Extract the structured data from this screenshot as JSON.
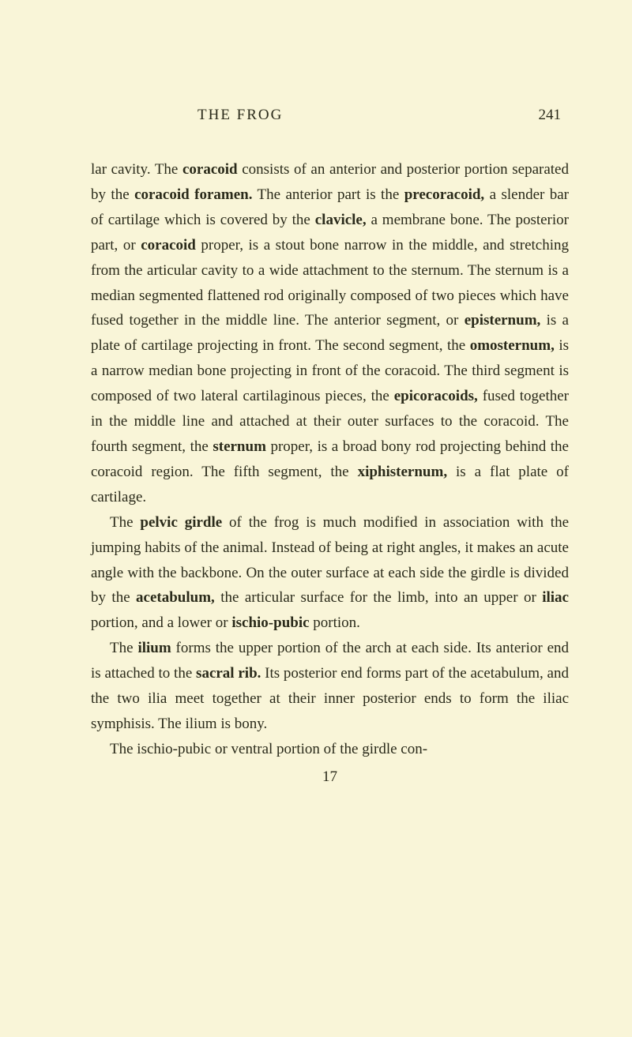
{
  "header": {
    "title": "THE FROG",
    "pageNumber": "241"
  },
  "paragraphs": {
    "p1": {
      "text": "lar cavity. The ",
      "bold1": "coracoid",
      "text2": " consists of an anterior and posterior portion separated by the ",
      "bold2": "coracoid foramen.",
      "text3": " The anterior part is the ",
      "bold3": "precoracoid,",
      "text4": " a slender bar of cartilage which is covered by the ",
      "bold4": "clavicle,",
      "text5": " a membrane bone. The posterior part, or ",
      "bold5": "coracoid",
      "text6": " proper, is a stout bone narrow in the middle, and stretching from the articular cavity to a wide attachment to the sternum. The sternum is a median segmented flattened rod originally composed of two pieces which have fused together in the middle line. The anterior segment, or ",
      "bold6": "episternum,",
      "text7": " is a plate of cartilage projecting in front. The second segment, the ",
      "bold7": "omosternum,",
      "text8": " is a narrow median bone projecting in front of the coracoid. The third segment is composed of two lateral cartilaginous pieces, the ",
      "bold8": "epicoracoids,",
      "text9": " fused together in the middle line and attached at their outer surfaces to the coracoid. The fourth segment, the ",
      "bold9": "sternum",
      "text10": " proper, is a broad bony rod projecting behind the coracoid region. The fifth segment, the ",
      "bold10": "xiphisternum,",
      "text11": " is a flat plate of cartilage."
    },
    "p2": {
      "text1": "The ",
      "bold1": "pelvic girdle",
      "text2": " of the frog is much modified in association with the jumping habits of the animal. Instead of being at right angles, it makes an acute angle with the backbone. On the outer surface at each side the girdle is divided by the ",
      "bold2": "acetabulum,",
      "text3": " the articular surface for the limb, into an upper or ",
      "bold3": "iliac",
      "text4": " portion, and a lower or ",
      "bold4": "ischio-pubic",
      "text5": " portion."
    },
    "p3": {
      "text1": "The ",
      "bold1": "ilium",
      "text2": " forms the upper portion of the arch at each side. Its anterior end is attached to the ",
      "bold2": "sacral rib.",
      "text3": " Its posterior end forms part of the acetabulum, and the two ilia meet together at their inner posterior ends to form the iliac symphisis. The ilium is bony."
    },
    "p4": {
      "text1": "The ischio-pubic or ventral portion of the girdle con-"
    }
  },
  "footerNumber": "17",
  "colors": {
    "background": "#f9f5d8",
    "text": "#2a2a1a"
  },
  "typography": {
    "bodyFontSize": 19,
    "lineHeight": 1.68,
    "fontFamily": "Georgia, Times New Roman, serif"
  }
}
